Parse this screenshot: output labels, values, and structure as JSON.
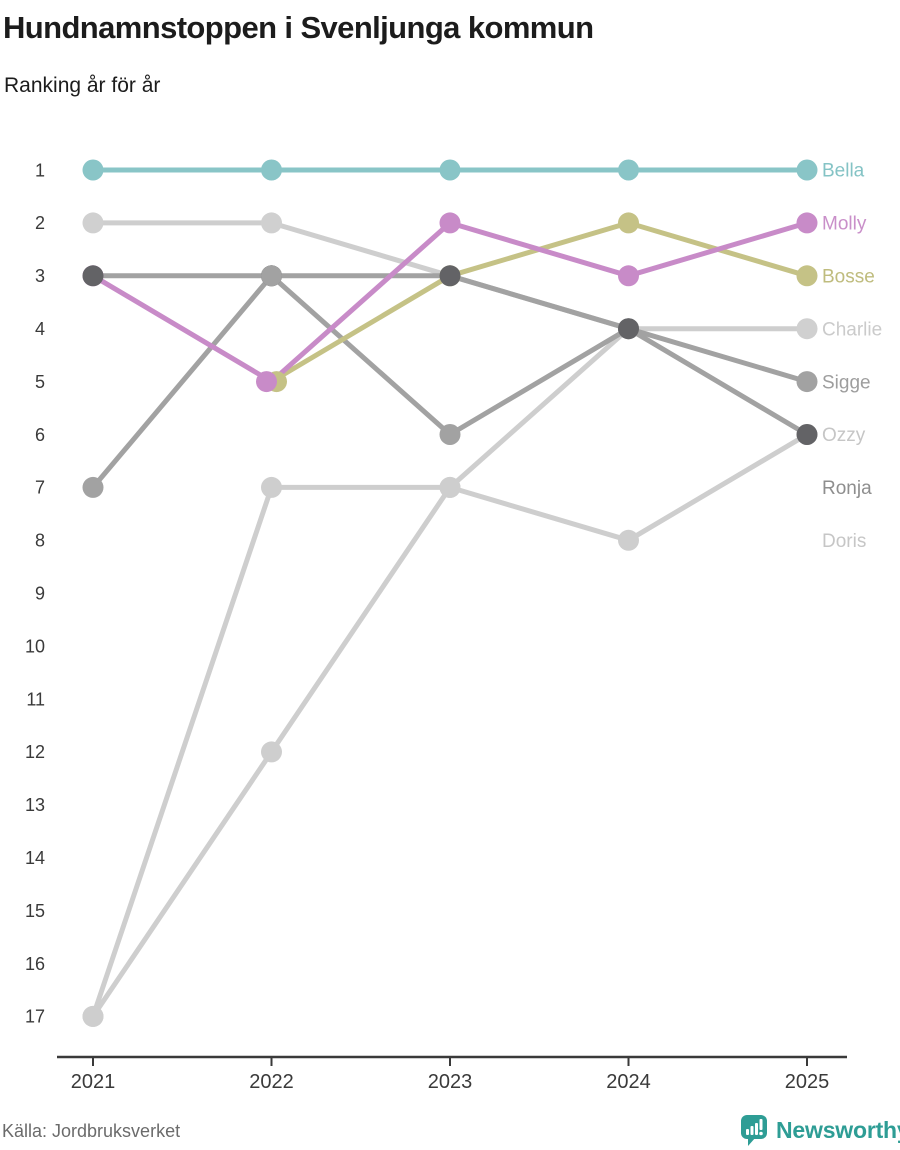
{
  "header": {
    "title": "Hundnamnstoppen i Svenljunga kommun",
    "subtitle": "Ranking år för år"
  },
  "footer": {
    "source": "Källa: Jordbruksverket",
    "brand": "Newsworthy"
  },
  "brand_color": "#2e9d95",
  "axis_color": "#3a3a3a",
  "chart_data": {
    "type": "line",
    "variant": "bump-ranking",
    "title": "Hundnamnstoppen i Svenljunga kommun",
    "subtitle": "Ranking år för år",
    "xlabel": "",
    "ylabel": "",
    "x": [
      2021,
      2022,
      2023,
      2024,
      2025
    ],
    "x_tick_labels": [
      "2021",
      "2022",
      "2023",
      "2024",
      "2025"
    ],
    "y_ticks": [
      1,
      2,
      3,
      4,
      5,
      6,
      7,
      8,
      9,
      10,
      11,
      12,
      13,
      14,
      15,
      16,
      17
    ],
    "ylim": [
      17,
      1
    ],
    "y_axis_inverted": true,
    "grid": "off",
    "legend_position": "right-end-labels",
    "series": [
      {
        "name": "Doris",
        "line_color": "#cecece",
        "dot_color": "#cecece",
        "label_color": "#c6c6c6",
        "label_slot": 8,
        "points": [
          [
            2021,
            17
          ],
          [
            2022,
            12
          ],
          [
            2023,
            7
          ],
          [
            2024,
            4
          ]
        ]
      },
      {
        "name": "Ozzy",
        "line_color": "#cecece",
        "dot_color": "#cecece",
        "label_color": "#c6c6c6",
        "label_slot": 6,
        "points": [
          [
            2021,
            17
          ],
          [
            2022,
            7
          ],
          [
            2023,
            7
          ],
          [
            2024,
            8
          ],
          [
            2025,
            6
          ]
        ]
      },
      {
        "name": "Charlie",
        "line_color": "#cecece",
        "dot_color": "#d0d0d0",
        "label_color": "#cbcbcb",
        "label_slot": 4,
        "points": [
          [
            2021,
            2
          ],
          [
            2022,
            2
          ],
          [
            2023,
            3
          ],
          [
            2024,
            4
          ],
          [
            2025,
            4
          ]
        ]
      },
      {
        "name": "Ronja",
        "line_color": "#a2a2a2",
        "dot_color": "#636366",
        "label_color": "#8e8e8e",
        "label_slot": 7,
        "points": [
          [
            2021,
            3
          ],
          [
            2022,
            3
          ],
          [
            2023,
            3
          ],
          [
            2024,
            4
          ],
          [
            2025,
            6
          ]
        ]
      },
      {
        "name": "Sigge",
        "line_color": "#a2a2a2",
        "dot_color": "#a2a2a2",
        "label_color": "#9e9e9e",
        "label_slot": 5,
        "points": [
          [
            2021,
            7
          ],
          [
            2022,
            3
          ],
          [
            2023,
            6
          ],
          [
            2024,
            4
          ],
          [
            2025,
            5
          ]
        ]
      },
      {
        "name": "Bosse",
        "line_color": "#c5c286",
        "dot_color": "#c5c286",
        "label_color": "#bfbc7e",
        "label_slot": 3,
        "points": [
          [
            2022,
            5
          ],
          [
            2023,
            3
          ],
          [
            2024,
            2
          ],
          [
            2025,
            3
          ]
        ]
      },
      {
        "name": "Molly",
        "line_color": "#c88bc8",
        "dot_color": "#c88bc8",
        "label_color": "#c98fc9",
        "label_slot": 2,
        "points": [
          [
            2021,
            3
          ],
          [
            2022,
            5
          ],
          [
            2023,
            2
          ],
          [
            2024,
            3
          ],
          [
            2025,
            2
          ]
        ]
      },
      {
        "name": "Bella",
        "line_color": "#89c5c7",
        "dot_color": "#89c5c7",
        "label_color": "#84c3c5",
        "label_slot": 1,
        "points": [
          [
            2021,
            1
          ],
          [
            2022,
            1
          ],
          [
            2023,
            1
          ],
          [
            2024,
            1
          ],
          [
            2025,
            1
          ]
        ]
      }
    ],
    "dots_draw_order": [
      "Doris",
      "Ozzy",
      "Charlie",
      "Sigge",
      "Bosse",
      "Molly",
      "Bella",
      "Ronja"
    ],
    "dot_offsets": [
      {
        "series": "Bosse",
        "year": 2022,
        "dx": 5
      },
      {
        "series": "Molly",
        "year": 2022,
        "dx": -5
      }
    ],
    "overlay_dots": [
      {
        "year": 2022,
        "rank": 3,
        "color": "#a2a2a2"
      }
    ]
  }
}
